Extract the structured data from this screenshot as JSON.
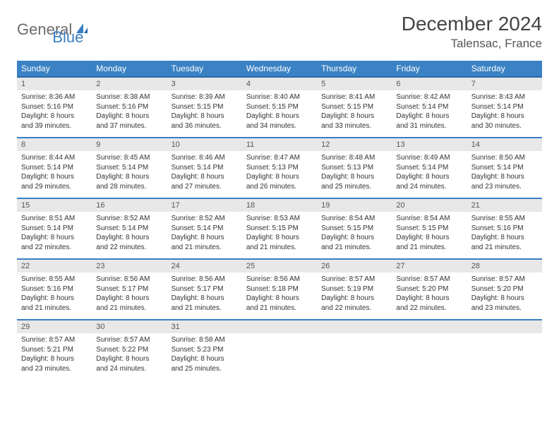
{
  "logo": {
    "text1": "General",
    "text2": "Blue"
  },
  "title": "December 2024",
  "location": "Talensac, France",
  "colors": {
    "header_bg": "#3b82c4",
    "header_border": "#2a6aa8",
    "row_border": "#3b7fc4",
    "daynum_bg": "#e8e8e8",
    "logo_gray": "#6b6b6b",
    "logo_blue": "#3b7fc4"
  },
  "weekdays": [
    "Sunday",
    "Monday",
    "Tuesday",
    "Wednesday",
    "Thursday",
    "Friday",
    "Saturday"
  ],
  "days": [
    {
      "n": 1,
      "sr": "8:36 AM",
      "ss": "5:16 PM",
      "dl": "8 hours and 39 minutes."
    },
    {
      "n": 2,
      "sr": "8:38 AM",
      "ss": "5:16 PM",
      "dl": "8 hours and 37 minutes."
    },
    {
      "n": 3,
      "sr": "8:39 AM",
      "ss": "5:15 PM",
      "dl": "8 hours and 36 minutes."
    },
    {
      "n": 4,
      "sr": "8:40 AM",
      "ss": "5:15 PM",
      "dl": "8 hours and 34 minutes."
    },
    {
      "n": 5,
      "sr": "8:41 AM",
      "ss": "5:15 PM",
      "dl": "8 hours and 33 minutes."
    },
    {
      "n": 6,
      "sr": "8:42 AM",
      "ss": "5:14 PM",
      "dl": "8 hours and 31 minutes."
    },
    {
      "n": 7,
      "sr": "8:43 AM",
      "ss": "5:14 PM",
      "dl": "8 hours and 30 minutes."
    },
    {
      "n": 8,
      "sr": "8:44 AM",
      "ss": "5:14 PM",
      "dl": "8 hours and 29 minutes."
    },
    {
      "n": 9,
      "sr": "8:45 AM",
      "ss": "5:14 PM",
      "dl": "8 hours and 28 minutes."
    },
    {
      "n": 10,
      "sr": "8:46 AM",
      "ss": "5:14 PM",
      "dl": "8 hours and 27 minutes."
    },
    {
      "n": 11,
      "sr": "8:47 AM",
      "ss": "5:13 PM",
      "dl": "8 hours and 26 minutes."
    },
    {
      "n": 12,
      "sr": "8:48 AM",
      "ss": "5:13 PM",
      "dl": "8 hours and 25 minutes."
    },
    {
      "n": 13,
      "sr": "8:49 AM",
      "ss": "5:14 PM",
      "dl": "8 hours and 24 minutes."
    },
    {
      "n": 14,
      "sr": "8:50 AM",
      "ss": "5:14 PM",
      "dl": "8 hours and 23 minutes."
    },
    {
      "n": 15,
      "sr": "8:51 AM",
      "ss": "5:14 PM",
      "dl": "8 hours and 22 minutes."
    },
    {
      "n": 16,
      "sr": "8:52 AM",
      "ss": "5:14 PM",
      "dl": "8 hours and 22 minutes."
    },
    {
      "n": 17,
      "sr": "8:52 AM",
      "ss": "5:14 PM",
      "dl": "8 hours and 21 minutes."
    },
    {
      "n": 18,
      "sr": "8:53 AM",
      "ss": "5:15 PM",
      "dl": "8 hours and 21 minutes."
    },
    {
      "n": 19,
      "sr": "8:54 AM",
      "ss": "5:15 PM",
      "dl": "8 hours and 21 minutes."
    },
    {
      "n": 20,
      "sr": "8:54 AM",
      "ss": "5:15 PM",
      "dl": "8 hours and 21 minutes."
    },
    {
      "n": 21,
      "sr": "8:55 AM",
      "ss": "5:16 PM",
      "dl": "8 hours and 21 minutes."
    },
    {
      "n": 22,
      "sr": "8:55 AM",
      "ss": "5:16 PM",
      "dl": "8 hours and 21 minutes."
    },
    {
      "n": 23,
      "sr": "8:56 AM",
      "ss": "5:17 PM",
      "dl": "8 hours and 21 minutes."
    },
    {
      "n": 24,
      "sr": "8:56 AM",
      "ss": "5:17 PM",
      "dl": "8 hours and 21 minutes."
    },
    {
      "n": 25,
      "sr": "8:56 AM",
      "ss": "5:18 PM",
      "dl": "8 hours and 21 minutes."
    },
    {
      "n": 26,
      "sr": "8:57 AM",
      "ss": "5:19 PM",
      "dl": "8 hours and 22 minutes."
    },
    {
      "n": 27,
      "sr": "8:57 AM",
      "ss": "5:20 PM",
      "dl": "8 hours and 22 minutes."
    },
    {
      "n": 28,
      "sr": "8:57 AM",
      "ss": "5:20 PM",
      "dl": "8 hours and 23 minutes."
    },
    {
      "n": 29,
      "sr": "8:57 AM",
      "ss": "5:21 PM",
      "dl": "8 hours and 23 minutes."
    },
    {
      "n": 30,
      "sr": "8:57 AM",
      "ss": "5:22 PM",
      "dl": "8 hours and 24 minutes."
    },
    {
      "n": 31,
      "sr": "8:58 AM",
      "ss": "5:23 PM",
      "dl": "8 hours and 25 minutes."
    }
  ],
  "labels": {
    "sunrise": "Sunrise:",
    "sunset": "Sunset:",
    "daylight": "Daylight:"
  },
  "layout": {
    "start_weekday": 0,
    "trailing_blanks": 4
  }
}
